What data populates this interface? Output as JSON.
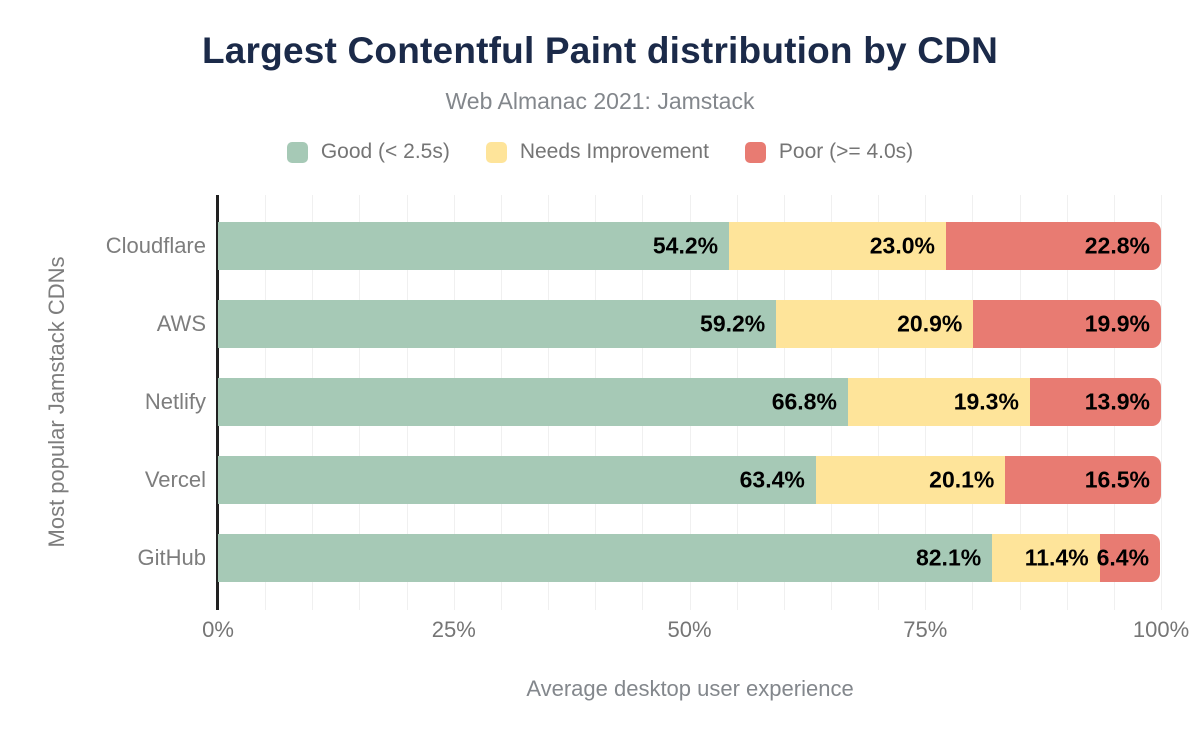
{
  "chart_data": {
    "type": "bar",
    "stacked": true,
    "orientation": "horizontal",
    "title": "Largest Contentful Paint distribution by CDN",
    "subtitle": "Web Almanac 2021: Jamstack",
    "categories": [
      "Cloudflare",
      "AWS",
      "Netlify",
      "Vercel",
      "GitHub"
    ],
    "series": [
      {
        "name": "Good (< 2.5s)",
        "color": "#a6c9b6",
        "values": [
          54.2,
          59.2,
          66.8,
          63.4,
          82.1
        ]
      },
      {
        "name": "Needs Improvement",
        "color": "#fee49a",
        "values": [
          23.0,
          20.9,
          19.3,
          20.1,
          11.4
        ]
      },
      {
        "name": "Poor (>= 4.0s)",
        "color": "#e87b72",
        "values": [
          22.8,
          19.9,
          13.9,
          16.5,
          6.4
        ]
      }
    ],
    "xlabel": "Average desktop user experience",
    "ylabel": "Most popular Jamstack CDNs",
    "x_ticks": [
      "0%",
      "25%",
      "50%",
      "75%",
      "100%"
    ],
    "x_tick_values": [
      0,
      25,
      50,
      75,
      100
    ],
    "xlim": [
      0,
      100
    ],
    "gridline_step": 5,
    "grid": true,
    "legend_position": "top",
    "value_suffix": "%",
    "colors": {
      "title": "#1b2a49",
      "subtitle": "#83878c",
      "axis_line": "#212121",
      "gridline": "#f0f0f0",
      "tick_label": "#757575",
      "data_label": "#000000"
    }
  }
}
